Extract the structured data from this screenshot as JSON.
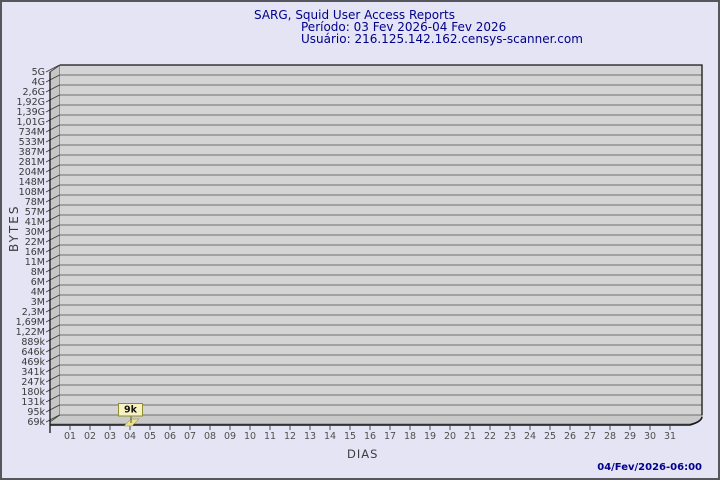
{
  "window": {
    "background": "#e4e4f4",
    "border_color": "#56565e"
  },
  "header": {
    "title": "SARG, Squid User Access Reports",
    "period": "Período: 03 Fev 2026-04 Fev 2026",
    "user": "Usuário: 216.125.142.162.censys-scanner.com",
    "text_color": "#00008b"
  },
  "footer": {
    "timestamp": "04/Fev/2026-06:00"
  },
  "chart_data": {
    "type": "bar",
    "title": "SARG, Squid User Access Reports",
    "subtitle": "Período: 03 Fev 2026-04 Fev 2026",
    "user_line": "Usuário: 216.125.142.162.censys-scanner.com",
    "xlabel": "DIAS",
    "ylabel": "BYTES",
    "y_scale": "log",
    "grid": true,
    "legend": "none",
    "ylim_labels": [
      "69k",
      "5G"
    ],
    "y_ticks": [
      "5G",
      "4G",
      "2,6G",
      "1,92G",
      "1,39G",
      "1,01G",
      "734M",
      "533M",
      "387M",
      "281M",
      "204M",
      "148M",
      "108M",
      "78M",
      "57M",
      "41M",
      "30M",
      "22M",
      "16M",
      "11M",
      "8M",
      "6M",
      "4M",
      "3M",
      "2,3M",
      "1,69M",
      "1,22M",
      "889k",
      "646k",
      "469k",
      "341k",
      "247k",
      "180k",
      "131k",
      "95k",
      "69k"
    ],
    "x_ticks": [
      "01",
      "02",
      "03",
      "04",
      "05",
      "06",
      "07",
      "08",
      "09",
      "10",
      "11",
      "12",
      "13",
      "14",
      "15",
      "16",
      "17",
      "18",
      "19",
      "20",
      "21",
      "22",
      "23",
      "24",
      "25",
      "26",
      "27",
      "28",
      "29",
      "30",
      "31"
    ],
    "bars": [
      {
        "x": "04",
        "value_label": "9k",
        "value_bytes": 9000
      }
    ],
    "colors": {
      "plot_background": "#d4d4d4",
      "grid_line": "#6e6e6e",
      "wall_fill": "#c6c6c6",
      "floor_fill": "#c9c9c9",
      "frame_line": "#151515",
      "tick_line": "#3a3a3a",
      "y_tick_text": "#3a3a3a",
      "x_tick_text": "#505050",
      "axis_title_text": "#3c3c3c",
      "bar_fill": "#ece086",
      "bar_edge": "#8a8a40",
      "marker_box_fill": "#f8f2c2",
      "marker_box_border": "#8f8f30",
      "marker_text": "#111111"
    }
  }
}
